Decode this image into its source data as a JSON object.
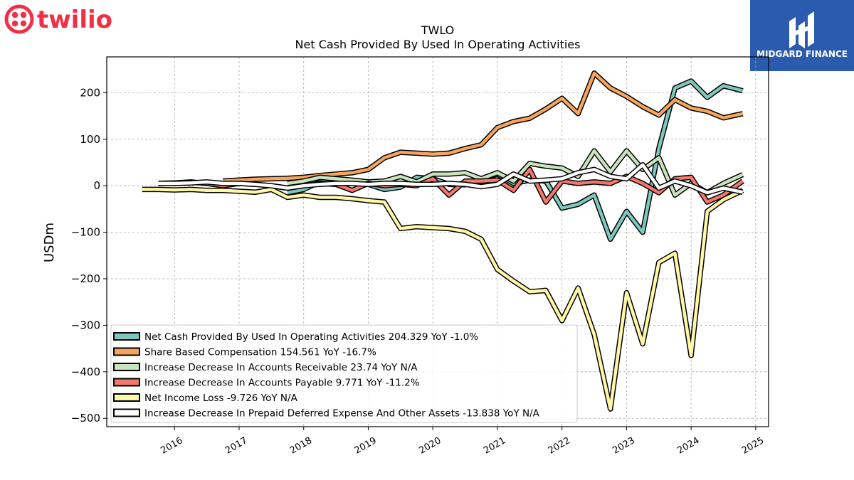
{
  "logos": {
    "brand_left": "twilio",
    "brand_right": "MIDGARD FINANCE",
    "brand_left_color": "#F22F46",
    "brand_right_bg": "#2B5BAE"
  },
  "chart_data": {
    "type": "line",
    "title": "TWLO",
    "subtitle": "Net Cash Provided By Used In Operating Activities",
    "xlabel": "",
    "ylabel": "USDm",
    "xlim": [
      2014.95,
      2025.2
    ],
    "ylim": [
      -518,
      277
    ],
    "x_ticks": [
      2016,
      2017,
      2018,
      2019,
      2020,
      2021,
      2022,
      2023,
      2024,
      2025
    ],
    "y_ticks": [
      -500,
      -400,
      -300,
      -200,
      -100,
      0,
      100,
      200
    ],
    "y_tick_labels": [
      "−500",
      "−400",
      "−300",
      "−200",
      "−100",
      "0",
      "100",
      "200"
    ],
    "grid": true,
    "legend_position": "lower left",
    "series": [
      {
        "name": "Net Cash Provided By Used In Operating Activities",
        "legend": "Net Cash Provided By Used In Operating Activities  204.329 YoY -1.0%",
        "color": "#7FC7BC",
        "x": [
          2017.75,
          2018.0,
          2018.25,
          2018.5,
          2018.75,
          2019.0,
          2019.25,
          2019.5,
          2019.75,
          2020.0,
          2020.25,
          2020.5,
          2020.75,
          2021.0,
          2021.25,
          2021.5,
          2021.75,
          2022.0,
          2022.25,
          2022.5,
          2022.75,
          2023.0,
          2023.25,
          2023.5,
          2023.75,
          2024.0,
          2024.25,
          2024.5,
          2024.8
        ],
        "y": [
          -15,
          -8,
          8,
          12,
          10,
          3,
          -8,
          -3,
          18,
          15,
          3,
          2,
          15,
          25,
          5,
          12,
          10,
          -48,
          -40,
          -20,
          -115,
          -55,
          -100,
          80,
          210,
          225,
          190,
          215,
          204
        ]
      },
      {
        "name": "Share Based Compensation",
        "legend": "Share Based Compensation  154.561 YoY -16.7%",
        "color": "#F6A55E",
        "x": [
          2016.75,
          2017.0,
          2017.25,
          2017.5,
          2017.75,
          2018.0,
          2018.25,
          2018.5,
          2018.75,
          2019.0,
          2019.25,
          2019.5,
          2019.75,
          2020.0,
          2020.25,
          2020.5,
          2020.75,
          2021.0,
          2021.25,
          2021.5,
          2021.75,
          2022.0,
          2022.25,
          2022.5,
          2022.75,
          2023.0,
          2023.25,
          2023.5,
          2023.75,
          2024.0,
          2024.25,
          2024.5,
          2024.8
        ],
        "y": [
          10,
          12,
          14,
          15,
          16,
          18,
          22,
          25,
          28,
          35,
          60,
          72,
          70,
          68,
          70,
          80,
          88,
          125,
          138,
          145,
          165,
          188,
          155,
          242,
          210,
          192,
          170,
          152,
          185,
          167,
          160,
          146,
          155
        ]
      },
      {
        "name": "Increase Decrease In Accounts Receivable",
        "legend": "Increase Decrease In Accounts Receivable  23.74 YoY N/A",
        "color": "#C9E4BD",
        "x": [
          2017.75,
          2018.0,
          2018.25,
          2018.5,
          2018.75,
          2019.0,
          2019.25,
          2019.5,
          2019.75,
          2020.0,
          2020.25,
          2020.5,
          2020.75,
          2021.0,
          2021.25,
          2021.5,
          2021.75,
          2022.0,
          2022.25,
          2022.5,
          2022.75,
          2023.0,
          2023.25,
          2023.5,
          2023.75,
          2024.0,
          2024.25,
          2024.5,
          2024.8
        ],
        "y": [
          5,
          10,
          18,
          15,
          12,
          8,
          10,
          20,
          8,
          25,
          25,
          28,
          15,
          28,
          10,
          48,
          42,
          38,
          20,
          75,
          30,
          75,
          35,
          60,
          -20,
          5,
          -15,
          5,
          24
        ]
      },
      {
        "name": "Increase Decrease In Accounts Payable",
        "legend": "Increase Decrease In Accounts Payable  9.771 YoY -11.2%",
        "color": "#F0786C",
        "x": [
          2015.75,
          2016.0,
          2016.25,
          2016.5,
          2016.75,
          2017.0,
          2017.25,
          2017.5,
          2017.75,
          2018.0,
          2018.25,
          2018.5,
          2018.75,
          2019.0,
          2019.25,
          2019.5,
          2019.75,
          2020.0,
          2020.25,
          2020.5,
          2020.75,
          2021.0,
          2021.25,
          2021.5,
          2021.75,
          2022.0,
          2022.25,
          2022.5,
          2022.75,
          2023.0,
          2023.25,
          2023.5,
          2023.75,
          2024.0,
          2024.25,
          2024.5,
          2024.8
        ],
        "y": [
          5,
          6,
          8,
          5,
          0,
          5,
          3,
          0,
          -5,
          0,
          5,
          3,
          -10,
          5,
          0,
          3,
          0,
          15,
          -20,
          10,
          10,
          12,
          -10,
          35,
          -35,
          10,
          5,
          8,
          5,
          20,
          5,
          -15,
          15,
          18,
          -35,
          -20,
          10
        ]
      },
      {
        "name": "Net Income Loss",
        "legend": "Net Income Loss  -9.726 YoY N/A",
        "color": "#FFF8A8",
        "x": [
          2015.5,
          2015.75,
          2016.0,
          2016.25,
          2016.5,
          2016.75,
          2017.0,
          2017.25,
          2017.5,
          2017.75,
          2018.0,
          2018.25,
          2018.5,
          2018.75,
          2019.0,
          2019.25,
          2019.5,
          2019.75,
          2020.0,
          2020.25,
          2020.5,
          2020.75,
          2021.0,
          2021.25,
          2021.5,
          2021.75,
          2022.0,
          2022.25,
          2022.5,
          2022.75,
          2023.0,
          2023.25,
          2023.5,
          2023.75,
          2024.0,
          2024.25,
          2024.5,
          2024.8
        ],
        "y": [
          -8,
          -8,
          -9,
          -8,
          -10,
          -10,
          -12,
          -14,
          -8,
          -25,
          -20,
          -25,
          -25,
          -28,
          -32,
          -35,
          -92,
          -88,
          -90,
          -92,
          -98,
          -115,
          -180,
          -205,
          -228,
          -225,
          -290,
          -220,
          -320,
          -480,
          -230,
          -340,
          -165,
          -145,
          -365,
          -55,
          -30,
          -10
        ]
      },
      {
        "name": "Increase Decrease In Prepaid Deferred Expense And Other Assets",
        "legend": "Increase Decrease In Prepaid Deferred Expense And Other Assets  -13.838 YoY N/A",
        "color": "#FFFFFF",
        "x": [
          2015.75,
          2016.0,
          2016.25,
          2016.5,
          2016.75,
          2017.0,
          2017.25,
          2017.5,
          2017.75,
          2018.0,
          2018.25,
          2018.5,
          2018.75,
          2019.0,
          2019.25,
          2019.5,
          2019.75,
          2020.0,
          2020.25,
          2020.5,
          2020.75,
          2021.0,
          2021.25,
          2021.5,
          2021.75,
          2022.0,
          2022.25,
          2022.5,
          2022.75,
          2023.0,
          2023.25,
          2023.5,
          2023.75,
          2024.0,
          2024.25,
          2024.5,
          2024.8
        ],
        "y": [
          5,
          5,
          6,
          8,
          5,
          5,
          3,
          0,
          -5,
          0,
          3,
          5,
          5,
          3,
          5,
          5,
          3,
          3,
          5,
          3,
          -2,
          3,
          25,
          10,
          12,
          15,
          28,
          35,
          20,
          15,
          45,
          -5,
          10,
          0,
          -15,
          -5,
          -14
        ]
      }
    ]
  }
}
